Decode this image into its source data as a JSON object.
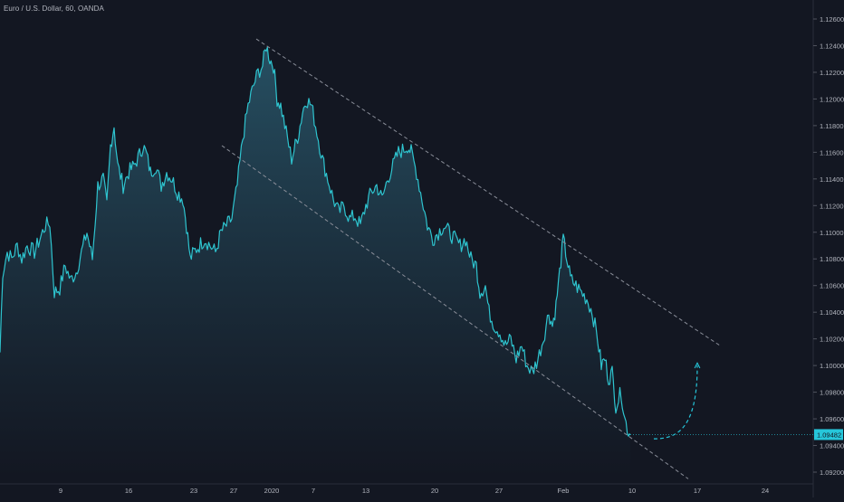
{
  "header": {
    "symbol_title": "Euro / U.S. Dollar, 60, OANDA"
  },
  "colors": {
    "background": "#131722",
    "line": "#2ec4cf",
    "fill_top": "#2a5a6e",
    "fill_bottom": "#131722",
    "axis_text": "#b2b5be",
    "trendline": "#8a8e99",
    "badge": "#26c6da",
    "projection": "#26c6da"
  },
  "chart_data": {
    "type": "area",
    "symbol": "EURUSD",
    "interval": "60",
    "source": "OANDA",
    "y_axis": {
      "position": "right",
      "range": [
        1.0915,
        1.1275
      ],
      "ticks": [
        "1.12600",
        "1.12400",
        "1.12200",
        "1.12000",
        "1.11800",
        "1.11600",
        "1.11400",
        "1.11200",
        "1.11000",
        "1.10800",
        "1.10600",
        "1.10400",
        "1.10200",
        "1.10000",
        "1.09800",
        "1.09600",
        "1.09400",
        "1.09200"
      ]
    },
    "x_axis": {
      "ticks": [
        "9",
        "16",
        "23",
        "27",
        "2020",
        "7",
        "13",
        "20",
        "27",
        "Feb",
        "10",
        "17",
        "24"
      ]
    },
    "last_price": "1.09482",
    "grid": false,
    "series": [
      {
        "values": [
          [
            0,
            1.101
          ],
          [
            3,
            1.107
          ],
          [
            8,
            1.1085
          ],
          [
            13,
            1.108
          ],
          [
            19,
            1.109
          ],
          [
            24,
            1.108
          ],
          [
            30,
            1.109
          ],
          [
            38,
            1.1085
          ],
          [
            44,
            1.1095
          ],
          [
            50,
            1.1105
          ],
          [
            55,
            1.1107
          ],
          [
            60,
            1.1055
          ],
          [
            66,
            1.1058
          ],
          [
            72,
            1.1075
          ],
          [
            78,
            1.1064
          ],
          [
            84,
            1.107
          ],
          [
            90,
            1.1085
          ],
          [
            96,
            1.11
          ],
          [
            102,
            1.108
          ],
          [
            108,
            1.1135
          ],
          [
            114,
            1.114
          ],
          [
            118,
            1.112
          ],
          [
            122,
            1.1165
          ],
          [
            126,
            1.118
          ],
          [
            130,
            1.115
          ],
          [
            136,
            1.1135
          ],
          [
            142,
            1.1145
          ],
          [
            148,
            1.115
          ],
          [
            154,
            1.1158
          ],
          [
            158,
            1.1165
          ],
          [
            162,
            1.1158
          ],
          [
            166,
            1.1145
          ],
          [
            172,
            1.115
          ],
          [
            178,
            1.1135
          ],
          [
            184,
            1.1145
          ],
          [
            190,
            1.114
          ],
          [
            196,
            1.113
          ],
          [
            202,
            1.1125
          ],
          [
            206,
            1.1105
          ],
          [
            210,
            1.108
          ],
          [
            214,
            1.1085
          ],
          [
            220,
            1.109
          ],
          [
            226,
            1.1095
          ],
          [
            232,
            1.109
          ],
          [
            238,
            1.1085
          ],
          [
            244,
            1.11
          ],
          [
            250,
            1.1105
          ],
          [
            256,
            1.111
          ],
          [
            262,
            1.1135
          ],
          [
            268,
            1.117
          ],
          [
            274,
            1.1195
          ],
          [
            280,
            1.121
          ],
          [
            285,
            1.122
          ],
          [
            290,
            1.1225
          ],
          [
            294,
            1.124
          ],
          [
            298,
            1.123
          ],
          [
            302,
            1.1225
          ],
          [
            306,
            1.12
          ],
          [
            310,
            1.1195
          ],
          [
            316,
            1.1175
          ],
          [
            322,
            1.1155
          ],
          [
            326,
            1.1165
          ],
          [
            330,
            1.1175
          ],
          [
            334,
            1.119
          ],
          [
            338,
            1.12
          ],
          [
            344,
            1.1195
          ],
          [
            350,
            1.1175
          ],
          [
            356,
            1.1155
          ],
          [
            362,
            1.114
          ],
          [
            368,
            1.1125
          ],
          [
            374,
            1.1115
          ],
          [
            380,
            1.112
          ],
          [
            386,
            1.111
          ],
          [
            392,
            1.1112
          ],
          [
            398,
            1.1105
          ],
          [
            404,
            1.112
          ],
          [
            410,
            1.113
          ],
          [
            416,
            1.1135
          ],
          [
            422,
            1.1125
          ],
          [
            428,
            1.114
          ],
          [
            434,
            1.115
          ],
          [
            440,
            1.116
          ],
          [
            446,
            1.1162
          ],
          [
            450,
            1.1165
          ],
          [
            454,
            1.116
          ],
          [
            460,
            1.1145
          ],
          [
            466,
            1.1125
          ],
          [
            472,
            1.1105
          ],
          [
            478,
            1.1095
          ],
          [
            484,
            1.11
          ],
          [
            490,
            1.1105
          ],
          [
            496,
            1.11
          ],
          [
            502,
            1.1095
          ],
          [
            508,
            1.109
          ],
          [
            514,
            1.1095
          ],
          [
            520,
            1.108
          ],
          [
            526,
            1.1075
          ],
          [
            530,
            1.1055
          ],
          [
            536,
            1.106
          ],
          [
            540,
            1.104
          ],
          [
            546,
            1.103
          ],
          [
            552,
            1.1025
          ],
          [
            558,
            1.1015
          ],
          [
            564,
            1.102
          ],
          [
            570,
            1.1005
          ],
          [
            576,
            1.1015
          ],
          [
            582,
            1.1
          ],
          [
            588,
            1.0995
          ],
          [
            594,
            1.1005
          ],
          [
            600,
            1.102
          ],
          [
            606,
            1.104
          ],
          [
            610,
            1.103
          ],
          [
            614,
            1.1045
          ],
          [
            618,
            1.107
          ],
          [
            622,
            1.1095
          ],
          [
            626,
            1.108
          ],
          [
            630,
            1.1065
          ],
          [
            636,
            1.106
          ],
          [
            642,
            1.1055
          ],
          [
            648,
            1.105
          ],
          [
            654,
            1.104
          ],
          [
            660,
            1.102
          ],
          [
            664,
            1.1
          ],
          [
            668,
            1.1005
          ],
          [
            672,
            1.099
          ],
          [
            676,
            1.0995
          ],
          [
            680,
            1.097
          ],
          [
            686,
            1.098
          ],
          [
            690,
            1.096
          ],
          [
            694,
            1.095
          ],
          [
            696,
            1.0948
          ]
        ]
      }
    ],
    "annotations": [
      {
        "type": "trendline",
        "style": "dashed",
        "from": [
          283,
          1.1245
        ],
        "to": [
          795,
          1.1015
        ]
      },
      {
        "type": "trendline",
        "style": "dashed",
        "from": [
          245,
          1.1165
        ],
        "to": [
          760,
          1.0915
        ]
      },
      {
        "type": "projection",
        "style": "dashed-curve-with-arrow",
        "from": [
          722,
          1.0945
        ],
        "to": [
          770,
          1.1
        ]
      }
    ]
  }
}
